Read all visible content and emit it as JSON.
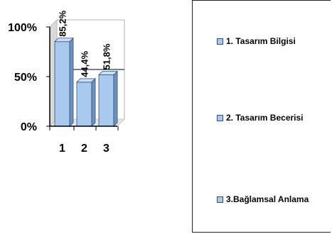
{
  "chart_data": {
    "type": "bar",
    "categories": [
      "1",
      "2",
      "3"
    ],
    "values": [
      85.2,
      44.4,
      51.8
    ],
    "data_labels": [
      "85,2%",
      "44,4%",
      "51,8%"
    ],
    "yticks": [
      "0%",
      "50%",
      "100%"
    ],
    "ylim": [
      0,
      100
    ],
    "grid": false,
    "legend_position": "right",
    "legend": [
      "1. Tasarım Bilgisi",
      "2. Tasarım Becerisi",
      "3.Bağlamsal Anlama"
    ],
    "colors": {
      "bar_front": "#a9c9ee",
      "bar_side": "#6f91bd",
      "bar_top": "#c9def6",
      "bar_edge": "#2c4f7c",
      "wall": "#d9d9d9"
    }
  }
}
